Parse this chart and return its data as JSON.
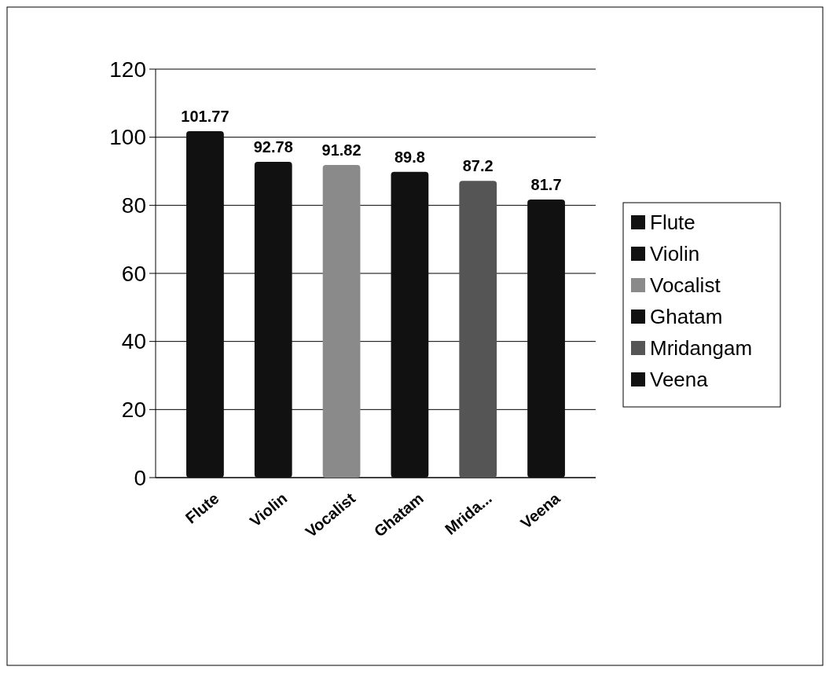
{
  "chart_data": {
    "type": "bar",
    "categories": [
      "Flute",
      "Violin",
      "Vocalist",
      "Ghatam",
      "Mrida...",
      "Veena"
    ],
    "series": [
      {
        "name": "Flute",
        "color": "#111111",
        "values": [
          101.77,
          null,
          null,
          null,
          null,
          null
        ]
      },
      {
        "name": "Violin",
        "color": "#111111",
        "values": [
          null,
          92.78,
          null,
          null,
          null,
          null
        ]
      },
      {
        "name": "Vocalist",
        "color": "#8a8a8a",
        "values": [
          null,
          null,
          91.82,
          null,
          null,
          null
        ]
      },
      {
        "name": "Ghatam",
        "color": "#111111",
        "values": [
          null,
          null,
          null,
          89.8,
          null,
          null
        ]
      },
      {
        "name": "Mridangam",
        "color": "#555555",
        "values": [
          null,
          null,
          null,
          null,
          87.2,
          null
        ]
      },
      {
        "name": "Veena",
        "color": "#111111",
        "values": [
          null,
          null,
          null,
          null,
          null,
          81.7
        ]
      }
    ],
    "ylim": [
      0,
      120
    ],
    "yticks": [
      0,
      20,
      40,
      60,
      80,
      100,
      120
    ],
    "grid": "y",
    "legend": "right",
    "data_labels": true
  }
}
